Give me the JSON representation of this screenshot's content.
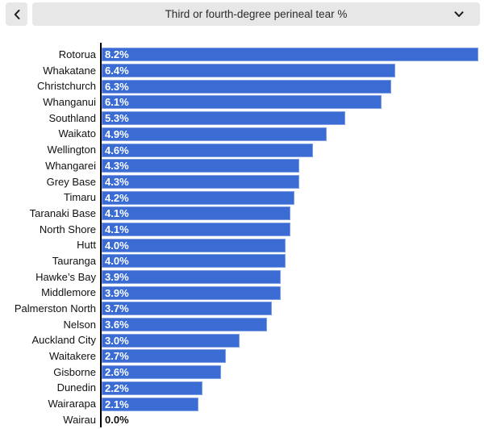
{
  "header": {
    "back_button": {
      "icon": "chevron-left-icon"
    },
    "metric_dropdown": {
      "selected": "Third or fourth-degree perineal tear %",
      "icon": "chevron-down-icon"
    }
  },
  "chart_data": {
    "type": "bar",
    "orientation": "horizontal",
    "title": "Third or fourth-degree perineal tear %",
    "categories": [
      "Rotorua",
      "Whakatane",
      "Christchurch",
      "Whanganui",
      "Southland",
      "Waikato",
      "Wellington",
      "Whangarei",
      "Grey Base",
      "Timaru",
      "Taranaki Base",
      "North Shore",
      "Hutt",
      "Tauranga",
      "Hawke’s Bay",
      "Middlemore",
      "Palmerston North",
      "Nelson",
      "Auckland City",
      "Waitakere",
      "Gisborne",
      "Dunedin",
      "Wairarapa",
      "Wairau"
    ],
    "values": [
      8.2,
      6.4,
      6.3,
      6.1,
      5.3,
      4.9,
      4.6,
      4.3,
      4.3,
      4.2,
      4.1,
      4.1,
      4.0,
      4.0,
      3.9,
      3.9,
      3.7,
      3.6,
      3.0,
      2.7,
      2.6,
      2.2,
      2.1,
      0.0
    ],
    "value_labels": [
      "8.2%",
      "6.4%",
      "6.3%",
      "6.1%",
      "5.3%",
      "4.9%",
      "4.6%",
      "4.3%",
      "4.3%",
      "4.2%",
      "4.1%",
      "4.1%",
      "4.0%",
      "4.0%",
      "3.9%",
      "3.9%",
      "3.7%",
      "3.6%",
      "3.0%",
      "2.7%",
      "2.6%",
      "2.2%",
      "2.1%",
      "0.0%"
    ],
    "xlim": [
      0,
      8.2
    ],
    "grid": false,
    "legend": false,
    "value_labels_position": "inside-start"
  },
  "colors": {
    "bar": "#3a6cd4",
    "axis_line": "#000000",
    "value_inside": "#ffffff",
    "value_outside": "#111111",
    "button_bg": "#e7e7e7",
    "text": "#2b2b2b",
    "background": "#ffffff"
  }
}
